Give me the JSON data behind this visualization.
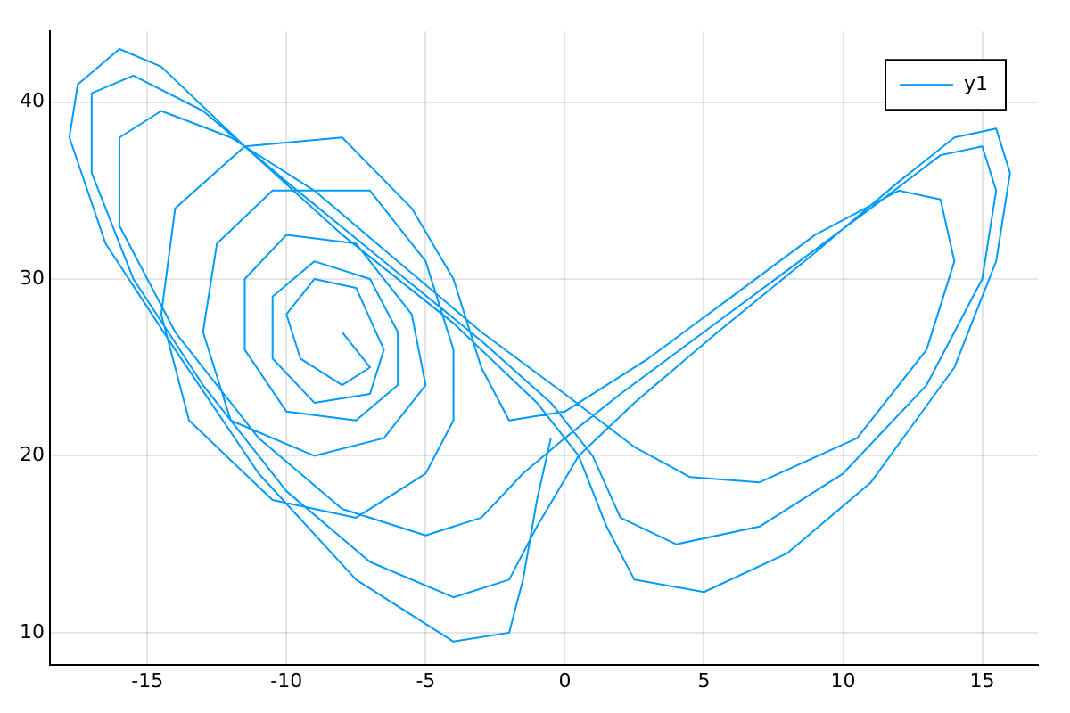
{
  "chart_data": {
    "type": "line",
    "xlim": [
      -18.5,
      17
    ],
    "ylim": [
      8.2,
      44
    ],
    "xticks": [
      -15,
      -10,
      -5,
      0,
      5,
      10,
      15
    ],
    "yticks": [
      10,
      20,
      30,
      40
    ],
    "grid": true,
    "legend": "top right",
    "marker": "none",
    "line_style": "solid",
    "series": [
      {
        "name": "y1",
        "color": "#009af9",
        "x": [
          -8,
          -7,
          -8,
          -9.5,
          -10,
          -9,
          -7.5,
          -6.5,
          -7,
          -9,
          -10.5,
          -10.5,
          -9,
          -7,
          -6,
          -6,
          -7.5,
          -10,
          -11.5,
          -11.5,
          -10,
          -7.5,
          -5.5,
          -5,
          -6.5,
          -9,
          -12,
          -13,
          -12.5,
          -10.5,
          -7,
          -5,
          -4,
          -4,
          -5,
          -7.5,
          -10.5,
          -13.5,
          -14.5,
          -14,
          -11.5,
          -8,
          -5.5,
          -4,
          -3,
          -2,
          0,
          3,
          6,
          9,
          12,
          13.5,
          14,
          13,
          10.5,
          7,
          4.5,
          2.5,
          0,
          -3,
          -6,
          -9,
          -12,
          -14.5,
          -16,
          -16,
          -14,
          -11,
          -8,
          -5,
          -3,
          -1.5,
          0,
          2,
          5,
          8,
          11,
          13.5,
          15,
          15.5,
          15,
          13,
          10,
          7,
          4,
          2,
          1,
          -0.5,
          -3,
          -6.5,
          -10,
          -13,
          -15.5,
          -17,
          -17,
          -15.5,
          -13,
          -10,
          -7,
          -4,
          -2,
          -1,
          0.5,
          2.5,
          5.5,
          9,
          12,
          14,
          15.5,
          16,
          15.5,
          14,
          11,
          8,
          5,
          2.5,
          1.5,
          0.5,
          -1,
          -4,
          -8,
          -11.5,
          -14.5,
          -16,
          -17.5,
          -17.8,
          -16.5,
          -14,
          -11,
          -7.5,
          -4,
          -2,
          -1.5,
          -1,
          -0.5
        ],
        "values": [
          27,
          25,
          24,
          25.5,
          28,
          30,
          29.5,
          26,
          23.5,
          23,
          25.5,
          29,
          31,
          30,
          27,
          24,
          22,
          22.5,
          26,
          30,
          32.5,
          32,
          28,
          24,
          21,
          20,
          22,
          27,
          32,
          35,
          35,
          31,
          26,
          22,
          19,
          16.5,
          17.5,
          22,
          28,
          34,
          37.5,
          38,
          34,
          30,
          25,
          22,
          22.5,
          25.5,
          29,
          32.5,
          35,
          34.5,
          31,
          26,
          21,
          18.5,
          18.8,
          20.5,
          23.5,
          27,
          31,
          35,
          38,
          39.5,
          38,
          33,
          27,
          21,
          17,
          15.5,
          16.5,
          19,
          21,
          23.5,
          27,
          30.5,
          34,
          37,
          37.5,
          35,
          30,
          24,
          19,
          16,
          15,
          16.5,
          20,
          23,
          26.5,
          31,
          35.5,
          39.5,
          41.5,
          40.5,
          36,
          30,
          24,
          18,
          14,
          12,
          13,
          16,
          20,
          23,
          27,
          31.5,
          35.5,
          38,
          38.5,
          36,
          31,
          25,
          18.5,
          14.5,
          12.3,
          13,
          16,
          20,
          23,
          27.5,
          32.5,
          37.5,
          42,
          43,
          41,
          38,
          32,
          26,
          19,
          13,
          9.5,
          10,
          13,
          17.5,
          21
        ]
      }
    ]
  }
}
